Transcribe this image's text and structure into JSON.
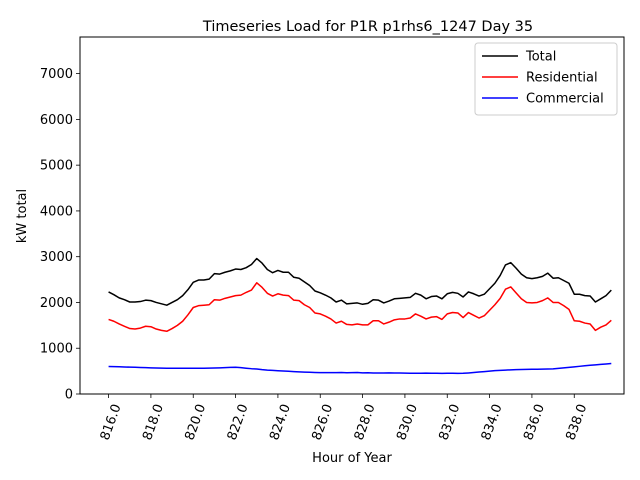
{
  "chart_data": {
    "type": "line",
    "title": "Timeseries Load for P1R p1rhs6_1247  Day 35",
    "xlabel": "Hour of Year",
    "ylabel": "kW total",
    "xlim": [
      814.65,
      840.35
    ],
    "ylim": [
      0,
      7800
    ],
    "xticks": [
      816,
      818,
      820,
      822,
      824,
      826,
      828,
      830,
      832,
      834,
      836,
      838
    ],
    "xtick_labels": [
      "816.0",
      "818.0",
      "820.0",
      "822.0",
      "824.0",
      "826.0",
      "828.0",
      "830.0",
      "832.0",
      "834.0",
      "836.0",
      "838.0"
    ],
    "yticks": [
      0,
      1000,
      2000,
      3000,
      4000,
      5000,
      6000,
      7000
    ],
    "ytick_labels": [
      "0",
      "1000",
      "2000",
      "3000",
      "4000",
      "5000",
      "6000",
      "7000"
    ],
    "legend_position": "top-right",
    "x_start": 816.0,
    "x_step": 0.25,
    "series": [
      {
        "name": "Total",
        "color": "#000000",
        "values": [
          2230,
          2170,
          2100,
          2060,
          2010,
          2010,
          2020,
          2050,
          2040,
          2000,
          1970,
          1940,
          2000,
          2060,
          2150,
          2280,
          2440,
          2490,
          2490,
          2510,
          2630,
          2620,
          2660,
          2690,
          2730,
          2720,
          2760,
          2830,
          2960,
          2860,
          2720,
          2650,
          2700,
          2660,
          2660,
          2550,
          2530,
          2450,
          2370,
          2250,
          2210,
          2160,
          2100,
          2010,
          2050,
          1970,
          1980,
          1990,
          1960,
          1980,
          2060,
          2050,
          1990,
          2030,
          2080,
          2090,
          2100,
          2110,
          2200,
          2160,
          2080,
          2130,
          2140,
          2080,
          2190,
          2220,
          2200,
          2120,
          2230,
          2190,
          2140,
          2180,
          2300,
          2420,
          2590,
          2820,
          2870,
          2750,
          2620,
          2540,
          2520,
          2540,
          2570,
          2640,
          2530,
          2540,
          2480,
          2420,
          2180,
          2180,
          2150,
          2140,
          2010,
          2080,
          2150,
          2270
        ]
      },
      {
        "name": "Residential",
        "color": "#ff0000",
        "values": [
          1630,
          1590,
          1530,
          1480,
          1430,
          1420,
          1440,
          1480,
          1470,
          1420,
          1390,
          1370,
          1430,
          1500,
          1590,
          1730,
          1890,
          1930,
          1940,
          1950,
          2060,
          2050,
          2090,
          2120,
          2150,
          2160,
          2220,
          2270,
          2430,
          2330,
          2200,
          2140,
          2190,
          2160,
          2150,
          2050,
          2040,
          1950,
          1890,
          1770,
          1750,
          1700,
          1640,
          1550,
          1590,
          1520,
          1510,
          1530,
          1510,
          1510,
          1600,
          1600,
          1530,
          1570,
          1620,
          1640,
          1640,
          1660,
          1750,
          1700,
          1640,
          1680,
          1690,
          1630,
          1750,
          1780,
          1770,
          1670,
          1780,
          1720,
          1660,
          1710,
          1830,
          1950,
          2090,
          2290,
          2340,
          2210,
          2080,
          2000,
          1990,
          2000,
          2040,
          2100,
          2000,
          2000,
          1930,
          1850,
          1600,
          1590,
          1550,
          1530,
          1390,
          1460,
          1510,
          1610
        ]
      },
      {
        "name": "Commercial",
        "color": "#0000ff",
        "values": [
          600,
          597,
          594,
          590,
          587,
          584,
          580,
          576,
          572,
          569,
          566,
          563,
          562,
          562,
          562,
          562,
          563,
          563,
          564,
          566,
          567,
          570,
          575,
          582,
          585,
          575,
          563,
          553,
          546,
          532,
          522,
          516,
          509,
          502,
          496,
          489,
          484,
          478,
          474,
          470,
          468,
          468,
          466,
          468,
          471,
          465,
          468,
          470,
          462,
          465,
          458,
          460,
          459,
          462,
          460,
          458,
          456,
          454,
          453,
          452,
          455,
          454,
          452,
          451,
          452,
          452,
          451,
          452,
          460,
          470,
          480,
          490,
          500,
          510,
          517,
          522,
          528,
          532,
          535,
          537,
          540,
          542,
          543,
          546,
          550,
          560,
          570,
          582,
          593,
          605,
          617,
          627,
          637,
          647,
          656,
          665
        ]
      }
    ]
  }
}
